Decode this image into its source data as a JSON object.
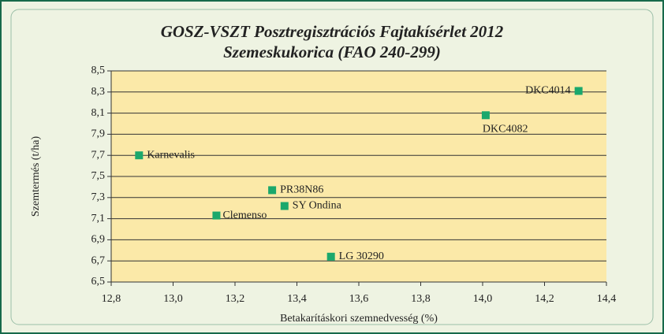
{
  "chart_data": {
    "type": "scatter",
    "title": "GOSZ-VSZT Posztregisztrációs Fajtakísérlet 2012",
    "subtitle": "Szemeskukorica (FAO 240-299)",
    "x_label": "Betakarításkori szemnedvesség (%)",
    "y_label": "Szemtermés (t/ha)",
    "color": "#1ba86c",
    "grid": true,
    "series": [
      {
        "name": null,
        "color": "#1ba86c",
        "labels": [
          "DKC4014",
          "DKC4082",
          "Karnevalis",
          "PR38N86",
          "SY Ondina",
          "Clemenso",
          "LG 30290"
        ],
        "x": [
          14.31,
          14.01,
          12.89,
          13.32,
          13.36,
          13.14,
          13.51
        ],
        "values": [
          8.31,
          8.08,
          7.7,
          7.37,
          7.22,
          7.13,
          6.74
        ]
      }
    ],
    "xlim": [
      12.8,
      14.4
    ],
    "xticks": [
      {
        "value": 12.8,
        "label": "12,8"
      },
      {
        "value": 13.0,
        "label": "13,0"
      },
      {
        "value": 13.2,
        "label": "13,2"
      },
      {
        "value": 13.4,
        "label": "13,4"
      },
      {
        "value": 13.6,
        "label": "13,6"
      },
      {
        "value": 13.8,
        "label": "13,8"
      },
      {
        "value": 14.0,
        "label": "14,0"
      },
      {
        "value": 14.2,
        "label": "14,2"
      },
      {
        "value": 14.4,
        "label": "14,4"
      }
    ],
    "ylim": [
      6.5,
      8.5
    ],
    "yticks": [
      {
        "value": 6.5,
        "label": "6,5"
      },
      {
        "value": 6.7,
        "label": "6,7"
      },
      {
        "value": 6.9,
        "label": "6,9"
      },
      {
        "value": 7.1,
        "label": "7,1"
      },
      {
        "value": 7.3,
        "label": "7,3"
      },
      {
        "value": 7.5,
        "label": "7,5"
      },
      {
        "value": 7.7,
        "label": "7,7"
      },
      {
        "value": 7.9,
        "label": "7,9"
      },
      {
        "value": 8.1,
        "label": "8,1"
      },
      {
        "value": 8.3,
        "label": "8,3"
      },
      {
        "value": 8.5,
        "label": "8,5"
      }
    ]
  }
}
